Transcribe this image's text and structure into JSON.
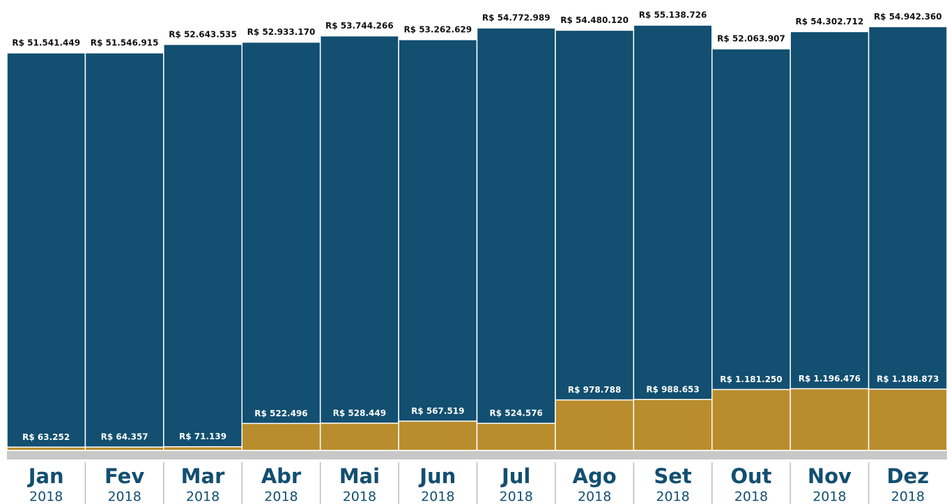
{
  "chart_data": {
    "type": "bar",
    "categories": [
      "Jan",
      "Fev",
      "Mar",
      "Abr",
      "Mai",
      "Jun",
      "Jul",
      "Ago",
      "Set",
      "Out",
      "Nov",
      "Dez"
    ],
    "category_years": [
      "2018",
      "2018",
      "2018",
      "2018",
      "2018",
      "2018",
      "2018",
      "2018",
      "2018",
      "2018",
      "2018",
      "2018"
    ],
    "ylim": [
      0,
      57500000
    ],
    "y2lim": [
      0,
      8600000
    ],
    "series": [
      {
        "color": "#124f70",
        "values": [
          51541449,
          51546915,
          52643535,
          52933170,
          53744266,
          53262629,
          54772989,
          54480120,
          55138726,
          52063907,
          54302712,
          54942360
        ],
        "value_labels": [
          "R$ 51.541.449",
          "R$ 51.546.915",
          "R$ 52.643.535",
          "R$ 52.933.170",
          "R$ 53.744.266",
          "R$ 53.262.629",
          "R$ 54.772.989",
          "R$ 54.480.120",
          "R$ 55.138.726",
          "R$ 52.063.907",
          "R$ 54.302.712",
          "R$ 54.942.360"
        ]
      },
      {
        "color": "#b98d2e",
        "axis": "y2",
        "values": [
          63252,
          64357,
          71139,
          522496,
          528449,
          567519,
          524576,
          978788,
          988653,
          1181250,
          1196476,
          1188873
        ],
        "value_labels": [
          "R$ 63.252",
          "R$ 64.357",
          "R$ 71.139",
          "R$ 522.496",
          "R$ 528.449",
          "R$ 567.519",
          "R$ 524.576",
          "R$ 978.788",
          "R$ 988.653",
          "R$ 1.181.250",
          "R$ 1.196.476",
          "R$ 1.188.873"
        ]
      }
    ]
  }
}
